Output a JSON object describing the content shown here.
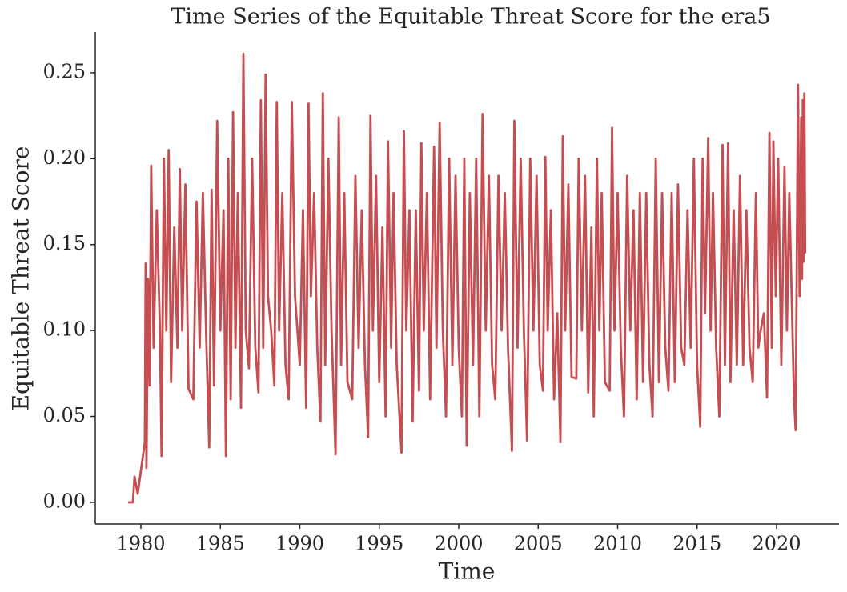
{
  "chart_data": {
    "type": "line",
    "title": "Time Series of the Equitable Threat Score for the era5",
    "xlabel": "Time",
    "ylabel": "Equitable Threat Score",
    "x": [
      1979.2,
      1979.5,
      1979.6,
      1979.8,
      1980.25,
      1980.3,
      1980.35,
      1980.45,
      1980.55,
      1980.65,
      1980.8,
      1981.0,
      1981.2,
      1981.3,
      1981.45,
      1981.6,
      1981.75,
      1981.9,
      1982.1,
      1982.3,
      1982.45,
      1982.6,
      1982.8,
      1983.0,
      1983.3,
      1983.5,
      1983.7,
      1983.9,
      1984.1,
      1984.3,
      1984.45,
      1984.6,
      1984.8,
      1985.0,
      1985.2,
      1985.35,
      1985.5,
      1985.65,
      1985.8,
      1985.95,
      1986.1,
      1986.3,
      1986.45,
      1986.6,
      1986.8,
      1987.0,
      1987.2,
      1987.4,
      1987.55,
      1987.7,
      1987.85,
      1988.0,
      1988.2,
      1988.4,
      1988.55,
      1988.7,
      1988.9,
      1989.1,
      1989.3,
      1989.5,
      1989.7,
      1990.0,
      1990.2,
      1990.4,
      1990.55,
      1990.7,
      1990.9,
      1991.1,
      1991.3,
      1991.45,
      1991.6,
      1991.8,
      1992.0,
      1992.25,
      1992.45,
      1992.6,
      1992.8,
      1993.0,
      1993.3,
      1993.5,
      1993.7,
      1993.9,
      1994.1,
      1994.3,
      1994.45,
      1994.6,
      1994.8,
      1995.0,
      1995.2,
      1995.4,
      1995.55,
      1995.75,
      1995.9,
      1996.1,
      1996.4,
      1996.55,
      1996.7,
      1996.9,
      1997.1,
      1997.3,
      1997.5,
      1997.65,
      1997.8,
      1998.0,
      1998.2,
      1998.45,
      1998.6,
      1998.8,
      1999.0,
      1999.2,
      1999.4,
      1999.6,
      1999.8,
      2000.0,
      2000.2,
      2000.35,
      2000.5,
      2000.7,
      2000.9,
      2001.1,
      2001.3,
      2001.5,
      2001.7,
      2001.9,
      2002.1,
      2002.3,
      2002.5,
      2002.7,
      2002.9,
      2003.1,
      2003.35,
      2003.5,
      2003.7,
      2003.9,
      2004.1,
      2004.3,
      2004.5,
      2004.7,
      2004.9,
      2005.1,
      2005.3,
      2005.45,
      2005.6,
      2005.8,
      2006.0,
      2006.2,
      2006.4,
      2006.55,
      2006.7,
      2006.9,
      2007.1,
      2007.4,
      2007.55,
      2007.75,
      2007.95,
      2008.15,
      2008.35,
      2008.5,
      2008.7,
      2008.85,
      2009.0,
      2009.2,
      2009.5,
      2009.65,
      2009.8,
      2010.0,
      2010.2,
      2010.4,
      2010.6,
      2010.8,
      2011.0,
      2011.2,
      2011.4,
      2011.6,
      2011.8,
      2012.0,
      2012.2,
      2012.4,
      2012.6,
      2012.8,
      2013.0,
      2013.2,
      2013.4,
      2013.6,
      2013.8,
      2014.0,
      2014.2,
      2014.4,
      2014.6,
      2014.8,
      2015.0,
      2015.2,
      2015.35,
      2015.5,
      2015.7,
      2015.85,
      2016.0,
      2016.2,
      2016.4,
      2016.6,
      2016.75,
      2016.95,
      2017.1,
      2017.3,
      2017.5,
      2017.7,
      2017.9,
      2018.1,
      2018.3,
      2018.5,
      2018.7,
      2018.85,
      2019.0,
      2019.2,
      2019.4,
      2019.55,
      2019.7,
      2019.8,
      2019.95,
      2020.1,
      2020.3,
      2020.5,
      2020.65,
      2020.8,
      2020.95,
      2021.1,
      2021.2,
      2021.35,
      2021.45,
      2021.55,
      2021.6,
      2021.65,
      2021.7,
      2021.75,
      2021.8
    ],
    "series": [
      {
        "color": "#c44e52",
        "values": [
          0,
          0,
          0.015,
          0.005,
          0.035,
          0.139,
          0.02,
          0.13,
          0.068,
          0.196,
          0.09,
          0.17,
          0.1,
          0.027,
          0.2,
          0.1,
          0.205,
          0.07,
          0.16,
          0.09,
          0.194,
          0.1,
          0.185,
          0.066,
          0.06,
          0.175,
          0.09,
          0.18,
          0.1,
          0.032,
          0.182,
          0.068,
          0.222,
          0.1,
          0.17,
          0.027,
          0.2,
          0.06,
          0.227,
          0.09,
          0.18,
          0.055,
          0.261,
          0.1,
          0.078,
          0.2,
          0.09,
          0.064,
          0.234,
          0.09,
          0.249,
          0.12,
          0.1,
          0.068,
          0.233,
          0.1,
          0.18,
          0.08,
          0.06,
          0.233,
          0.12,
          0.08,
          0.17,
          0.055,
          0.232,
          0.12,
          0.18,
          0.09,
          0.047,
          0.238,
          0.08,
          0.2,
          0.1,
          0.028,
          0.224,
          0.08,
          0.18,
          0.07,
          0.06,
          0.19,
          0.09,
          0.17,
          0.08,
          0.038,
          0.225,
          0.1,
          0.19,
          0.07,
          0.16,
          0.05,
          0.21,
          0.09,
          0.18,
          0.08,
          0.029,
          0.216,
          0.1,
          0.17,
          0.047,
          0.17,
          0.065,
          0.209,
          0.1,
          0.18,
          0.06,
          0.207,
          0.09,
          0.221,
          0.1,
          0.05,
          0.2,
          0.08,
          0.19,
          0.09,
          0.05,
          0.2,
          0.033,
          0.18,
          0.08,
          0.2,
          0.05,
          0.226,
          0.1,
          0.19,
          0.08,
          0.06,
          0.19,
          0.1,
          0.18,
          0.09,
          0.03,
          0.222,
          0.09,
          0.2,
          0.1,
          0.036,
          0.2,
          0.1,
          0.19,
          0.08,
          0.065,
          0.201,
          0.1,
          0.17,
          0.06,
          0.11,
          0.035,
          0.213,
          0.1,
          0.185,
          0.073,
          0.072,
          0.2,
          0.1,
          0.19,
          0.064,
          0.16,
          0.05,
          0.2,
          0.1,
          0.18,
          0.07,
          0.065,
          0.218,
          0.1,
          0.18,
          0.09,
          0.05,
          0.19,
          0.1,
          0.17,
          0.06,
          0.18,
          0.07,
          0.18,
          0.08,
          0.05,
          0.2,
          0.07,
          0.18,
          0.09,
          0.065,
          0.18,
          0.07,
          0.185,
          0.09,
          0.08,
          0.17,
          0.09,
          0.2,
          0.08,
          0.044,
          0.2,
          0.11,
          0.212,
          0.1,
          0.18,
          0.09,
          0.05,
          0.208,
          0.08,
          0.209,
          0.07,
          0.17,
          0.08,
          0.19,
          0.08,
          0.17,
          0.09,
          0.07,
          0.18,
          0.09,
          0.1,
          0.11,
          0.061,
          0.215,
          0.09,
          0.21,
          0.12,
          0.2,
          0.08,
          0.195,
          0.1,
          0.18,
          0.12,
          0.06,
          0.042,
          0.243,
          0.12,
          0.224,
          0.13,
          0.234,
          0.14,
          0.238,
          0.145
        ]
      }
    ],
    "xlim": [
      1977.13,
      2023.93
    ],
    "xticks": [
      1980,
      1985,
      1990,
      1995,
      2000,
      2005,
      2010,
      2015,
      2020
    ],
    "ylim": [
      -0.0126,
      0.2737
    ],
    "yticks": [
      {
        "value": 0,
        "label": "0.00"
      },
      0.05,
      {
        "value": 0.1,
        "label": "0.10"
      },
      0.15,
      {
        "value": 0.2,
        "label": "0.20"
      },
      0.25
    ]
  }
}
